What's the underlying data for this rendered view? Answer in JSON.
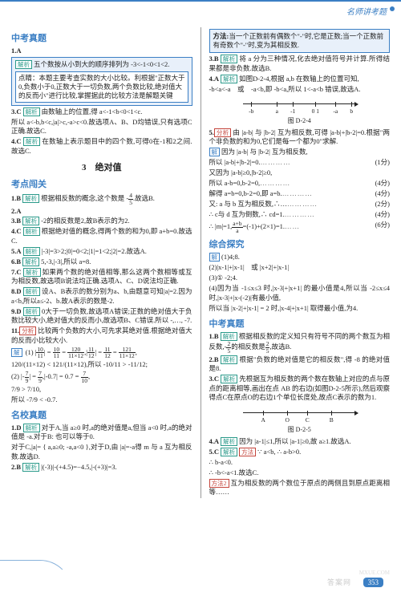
{
  "header": {
    "label": "名师讲考题"
  },
  "left": {
    "sec1": {
      "title": "中考真题"
    },
    "l1": {
      "num": "1.A"
    },
    "l2": {
      "t": "五个数按从小到大的顺序排列为 -3<-1<0<1<2."
    },
    "box1": {
      "lead": "点睛：本题主要考查实数的大小比较。利根据\"正数大于0,负数小于0,正数大于一切负数,两个负数比较,绝对值大的反而小\"进行比较,掌握据此的比较方法是解题关键"
    },
    "l3": {
      "num": "3.C",
      "t": "由数轴上的位置,得 a<-1<b<0<1<c."
    },
    "l3b": {
      "t": "所以 a<-b,b<c,|a|>c,-a>c<0.故选项A、B、D均错误,只有选项C正确.故选C."
    },
    "l4": {
      "num": "4.C",
      "t": "在数轴上表示题目中的四个数,可得0在-1和2之间.故选C."
    },
    "subsec": {
      "title": "3　绝对值"
    },
    "sec2": {
      "title": "考点闯关"
    },
    "k1": {
      "num": "1.B",
      "t": "根据相反数的概念,这个数是 -",
      "frac": {
        "t": "4",
        "b": "5"
      },
      "t2": ".故选B."
    },
    "k2": {
      "num": "2.A"
    },
    "k3": {
      "num": "3.B",
      "t": "-2的相反数是2,故B表示的为2."
    },
    "k4": {
      "num": "4.C",
      "t": "根据绝对值的概念,得两个数的和为0,即 a+b=0.故选C."
    },
    "k5": {
      "num": "5.A",
      "t": "|-3|=3>2;|0|=0<2;|1|=1<2;|2|=2.故选A."
    },
    "k6": {
      "num": "6.B",
      "t": "5,-3,|-3|,所以 a=8."
    },
    "k7": {
      "num": "7.C",
      "t": "如果两个数的绝对值相等,那么这两个数相等或互为相反数,故选项B说法均正确.选项A、C、D说法均正确."
    },
    "k8": {
      "num": "8.D",
      "t": "设A、B表示的数分别为a、b,由题意可知|a|=2.因为a<b,所以a≤-2、b.故A表示的数是-2."
    },
    "k9": {
      "num": "9.D",
      "t": "0大于一切负数,故选项A错误;正数的绝对值大于负数比较大小,绝对值大的反而小,故选项B、C错误.所以 -,…, -7."
    },
    "k11": {
      "num": "11.",
      "lead": "分析:",
      "t": "比较两个负数的大小,可先求其绝对值.根据绝对值大的反而小比较大小."
    },
    "sol": {
      "label": "解:",
      "r1a": "(1) |",
      "r1b": "| = ",
      "r1c": " = ",
      "r1d": ",|",
      "r1e": "| = ",
      "r1f": " = ",
      "r1g": ",",
      "f1": {
        "t": "10",
        "b": "11"
      },
      "f2": {
        "t": "10",
        "b": "11"
      },
      "f3": {
        "t": "120",
        "b": "11×12"
      },
      "f4": {
        "t": "11",
        "b": "12"
      },
      "f5": {
        "t": "11",
        "b": "12"
      },
      "f6": {
        "t": "121",
        "b": "11×12"
      },
      "r2": "120/(11×12) < 121/(11×12),所以 -10/11 > -11/12;",
      "r3a": "(2) |-",
      "r3b": "| = ",
      "r3c": ",|-0.7| = 0.7 = ",
      "g1": {
        "t": "7",
        "b": "9"
      },
      "g2": {
        "t": "7",
        "b": "9"
      },
      "g3": {
        "t": "7",
        "b": "10"
      },
      "r4": "7/9 > 7/10,",
      "r5": "所以 -7/9 < -0.7."
    },
    "sec3": {
      "title": "名校真题"
    },
    "m1": {
      "num": "1.D",
      "t": "对于A,当 a≥0 时,a的绝对值是a,但当 a<0 时,a的绝对值是 -a.对于B: 也可以等于0."
    },
    "m1b": {
      "t": "对于C,|a|= { a,a≥0; -a,a<0 },对于D,由 |a|=-a得 m 与 a 互为相反数.故选D."
    },
    "m2": {
      "num": "2.B",
      "t": "|(-3)|-(+4.5)=−4.5,|-(+3)|=3."
    }
  },
  "right": {
    "box": {
      "lead": "方法:",
      "t": "当一个正数前有偶数个\"-\"时,它是正数;当一个正数前有奇数个\"-\"时,变为其相反数."
    },
    "r3": {
      "num": "3.B",
      "t": "将 a 分为三种情况,化去绝对值符号并计算.所得结果都是非负数.故选B."
    },
    "r4": {
      "num": "4.A",
      "t": "如图D-2-4,根据 a,b 在数轴上的位置可知,",
      "t2": "-b<a<-a　或　-a<b,即 -b<a,所以 1<-a<b 错误,故选A."
    },
    "fig1": {
      "caption": "图 D-2-4",
      "ticks": [
        {
          "p": 10,
          "l": "-b"
        },
        {
          "p": 42,
          "l": "a"
        },
        {
          "p": 62,
          "l": "-1"
        },
        {
          "p": 90,
          "l": "0 1"
        },
        {
          "p": 115,
          "l": "-a"
        },
        {
          "p": 135,
          "l": "b"
        }
      ]
    },
    "r5": {
      "num": "5.",
      "lead": "分析:",
      "t": "由 |a-b| 与 |b-2| 互为相反数,可得 |a-b|+|b-2|=0.根据\"两个非负数的和为0,它们是每一个都为0\"求解."
    },
    "sol": {
      "label": "解:",
      "s1": "因为 |a-b| 与 |b-2| 互为相反数,",
      "s2": "所以 |a-b|+|b-2|=0.",
      "sc2": "(1分)",
      "s3": "又因为 |a-b|≥0,|b-2|≥0,",
      "s4": "所以 a-b=0,b-2=0,",
      "sc4": "(4分)",
      "s5": "解得 a=b=0,b-2=0,即 a=b.",
      "sc5": "(4分)",
      "s6": "又: a 与 b 互为相反数,∴…",
      "sc6": "(2分)",
      "s7": "∴ c与 d 互为倒数,∴ cd=1.",
      "sc7": "(4分)",
      "s8": "∴ |m|=1,",
      "m": "a+b",
      "n": "a",
      "t2": "=(-1)+(2×1)=1.",
      "sc8": "(6分)"
    },
    "sec2": {
      "title": "综合探究"
    },
    "z": {
      "label": "解:",
      "z1": "(1)4;8.",
      "z2": "(2)|x-1|+|x-1|　或 |x+2|+|x-1|",
      "z3": "(3)① -2;4.",
      "z4": "(4)因为当 -1≤x≤3 时,|x-3|+|x+1| 的最小值是4,所以当 -2≤x≤4 时,|x-3|+|x-(-2)|有最小值,",
      "z5": "所以当 |x-2|+|x-1| = 2 时,|x-4|+|x+1| 取得最小值,为4."
    },
    "sec3": {
      "title": "中考真题"
    },
    "c1": {
      "num": "1.B",
      "t": "根据相反数的定义知只有符号不同的两个数互为相反数,-",
      "f": {
        "t": "2",
        "b": "5"
      },
      "t2": "的相反数是",
      "f2": {
        "t": "2",
        "b": "5"
      },
      "t3": ",故选B."
    },
    "c2": {
      "num": "2.B",
      "t": "根据\"负数的绝对值是它的相反数\",得 -8 的绝对值是8."
    },
    "c3": {
      "num": "3.C",
      "t": "先根据互为相反数的两个数在数轴上对应的点与原点的距离相等,画出在点 AB 的右边(如图D-2-5所示),然后观察得点C在原点O的右边1个单位长度处,故点C表示的数为1."
    },
    "fig2": {
      "caption": "图 D-2-5",
      "labels": [
        "A",
        "O",
        "C",
        "B"
      ]
    },
    "c4": {
      "num": "4.A",
      "t": "因为 |a-1|≤1,所以 |a-1|≥0,故 a≥1.故选A."
    },
    "c5": {
      "num": "5.C",
      "lead": "方法1:",
      "t": "∵ a<b, ∴ a-b>0.",
      "t2": "∴ b-a<0.",
      "t3": "∴ -b<-a<1.故选C.",
      "lead2": "方法2:",
      "t4": "互为相反数的两个数位于原点的两侧且到原点距离相等……"
    }
  },
  "footer": {
    "page": "353",
    "wm": "答案网",
    "wm2": "MXUE.COM"
  }
}
